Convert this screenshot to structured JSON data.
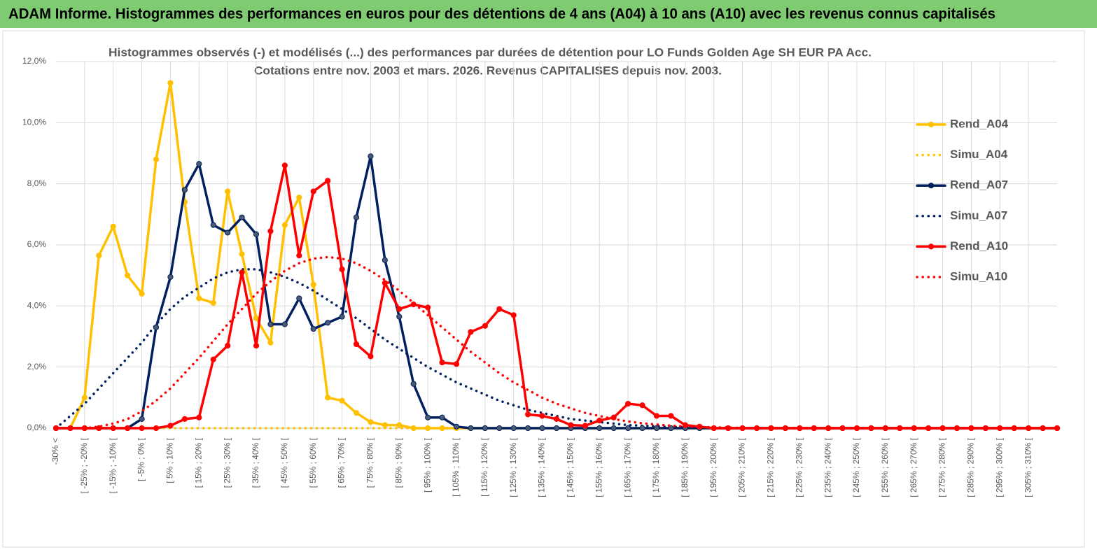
{
  "header": {
    "title": "ADAM Informe. Histogrammes des performances en euros pour des détentions de 4 ans (A04) à 10 ans (A10) avec les revenus connus capitalisés"
  },
  "chart_data": {
    "type": "line",
    "title": "Histogrammes observés (-) et modélisés (...) des performances par durées de détention pour LO Funds Golden Age SH EUR PA Acc.",
    "subtitle": "Cotations entre nov. 2003 et mars. 2026. Revenus CAPITALISES depuis nov. 2003.",
    "categories": [
      "-30% <",
      null,
      "[ -25% ; -20% [",
      null,
      "[ -15% ; -10% [",
      null,
      "[ -5% ; 0% [",
      null,
      "[ 5% ; 10% [",
      null,
      "[ 15% ; 20% [",
      null,
      "[ 25% ; 30% [",
      null,
      "[ 35% ; 40% [",
      null,
      "[ 45% ; 50% [",
      null,
      "[ 55% ; 60% [",
      null,
      "[ 65% ; 70% [",
      null,
      "[ 75% ; 80% [",
      null,
      "[ 85% ; 90% [",
      null,
      "[ 95% ; 100% [",
      null,
      "[ 105% ; 110% [",
      null,
      "[ 115% ; 120% [",
      null,
      "[ 125% ; 130% [",
      null,
      "[ 135% ; 140% [",
      null,
      "[ 145% ; 150% [",
      null,
      "[ 155% ; 160% [",
      null,
      "[ 165% ; 170% [",
      null,
      "[ 175% ; 180% [",
      null,
      "[ 185% ; 190% [",
      null,
      "[ 195% ; 200% [",
      null,
      "[ 205% ; 210% [",
      null,
      "[ 215% ; 220% [",
      null,
      "[ 225% ; 230% [",
      null,
      "[ 235% ; 240% [",
      null,
      "[ 245% ; 250% [",
      null,
      "[ 255% ; 260% [",
      null,
      "[ 265% ; 270% [",
      null,
      "[ 275% ; 280% [",
      null,
      "[ 285% ; 290% [",
      null,
      "[ 295% ; 300% [",
      null,
      "[ 305% ; 310% [",
      null,
      null
    ],
    "ylim": [
      0,
      12
    ],
    "yticks": [
      {
        "value": 0,
        "label": "0,0%"
      },
      {
        "value": 2,
        "label": "2,0%"
      },
      {
        "value": 4,
        "label": "4,0%"
      },
      {
        "value": 6,
        "label": "6,0%"
      },
      {
        "value": 8,
        "label": "8,0%"
      },
      {
        "value": 10,
        "label": "10,0%"
      },
      {
        "value": 12,
        "label": "12,0%"
      }
    ],
    "grid": true,
    "legend": "right",
    "series": [
      {
        "name": "Simu_A04",
        "color": "#ffc000",
        "style": "dotted",
        "markers": false,
        "values": [
          0,
          0,
          0,
          0,
          0,
          0,
          0,
          0,
          0,
          0,
          0,
          0,
          0,
          0,
          0,
          0,
          0,
          0,
          0,
          0,
          0,
          0,
          0,
          0,
          0,
          0,
          0,
          0,
          0,
          0,
          0,
          0,
          0,
          0,
          0,
          0,
          0,
          0,
          0,
          0,
          0,
          0,
          0,
          0,
          0,
          0,
          0,
          0,
          0,
          0,
          0,
          0,
          0,
          0,
          0,
          0,
          0,
          0,
          0,
          0,
          0,
          0,
          0,
          0,
          0,
          0,
          0,
          0,
          0,
          0,
          0
        ]
      },
      {
        "name": "Rend_A04",
        "color": "#ffc000",
        "style": "solid",
        "markers": true,
        "values": [
          0,
          0,
          1.0,
          5.65,
          6.6,
          5.0,
          4.4,
          8.8,
          11.3,
          7.4,
          4.25,
          4.1,
          7.75,
          5.7,
          3.6,
          2.8,
          6.65,
          7.55,
          4.7,
          1.0,
          0.9,
          0.5,
          0.2,
          0.1,
          0.1,
          0,
          0,
          0,
          0,
          0,
          0,
          0,
          0,
          0,
          0,
          0,
          0,
          0,
          0,
          0,
          0,
          0,
          0,
          0,
          0,
          0,
          0,
          0,
          0,
          0,
          0,
          0,
          0,
          0,
          0,
          0,
          0,
          0,
          0,
          0,
          0,
          0,
          0,
          0,
          0,
          0,
          0,
          0,
          0,
          0,
          0
        ]
      },
      {
        "name": "Simu_A07",
        "color": "#002060",
        "style": "dotted",
        "markers": false,
        "values": [
          0.0,
          0.4,
          0.8,
          1.3,
          1.8,
          2.3,
          2.8,
          3.4,
          3.9,
          4.3,
          4.6,
          4.9,
          5.1,
          5.2,
          5.2,
          5.1,
          4.95,
          4.75,
          4.5,
          4.2,
          3.9,
          3.6,
          3.25,
          2.9,
          2.6,
          2.3,
          2.0,
          1.75,
          1.5,
          1.3,
          1.1,
          0.9,
          0.75,
          0.6,
          0.5,
          0.4,
          0.3,
          0.25,
          0.2,
          0.15,
          0.1,
          0.08,
          0.06,
          0.04,
          0.03,
          0.02,
          0,
          0,
          0,
          0,
          0,
          0,
          0,
          0,
          0,
          0,
          0,
          0,
          0,
          0,
          0,
          0,
          0,
          0,
          0,
          0,
          0,
          0,
          0,
          0,
          0
        ]
      },
      {
        "name": "Rend_A07",
        "color": "#002060",
        "style": "solid",
        "markers": true,
        "values": [
          0,
          0,
          0,
          0,
          0,
          0,
          0.3,
          3.3,
          4.95,
          7.8,
          8.65,
          6.65,
          6.4,
          6.9,
          6.35,
          3.4,
          3.4,
          4.25,
          3.25,
          3.45,
          3.65,
          6.9,
          8.9,
          5.5,
          3.65,
          1.45,
          0.35,
          0.35,
          0.05,
          0,
          0,
          0,
          0,
          0,
          0,
          0,
          0,
          0,
          0,
          0,
          0,
          0,
          0,
          0,
          0,
          0,
          0,
          0,
          0,
          0,
          0,
          0,
          0,
          0,
          0,
          0,
          0,
          0,
          0,
          0,
          0,
          0,
          0,
          0,
          0,
          0,
          0,
          0,
          0,
          0,
          0
        ]
      },
      {
        "name": "Simu_A10",
        "color": "#ff0000",
        "style": "dotted",
        "markers": false,
        "values": [
          0,
          0,
          0,
          0.05,
          0.15,
          0.3,
          0.55,
          0.9,
          1.3,
          1.8,
          2.3,
          2.85,
          3.4,
          3.9,
          4.4,
          4.8,
          5.15,
          5.4,
          5.55,
          5.6,
          5.55,
          5.4,
          5.15,
          4.85,
          4.5,
          4.1,
          3.7,
          3.3,
          2.9,
          2.5,
          2.15,
          1.8,
          1.5,
          1.25,
          1.0,
          0.8,
          0.65,
          0.5,
          0.4,
          0.3,
          0.22,
          0.16,
          0.12,
          0.08,
          0.06,
          0.04,
          0.03,
          0.02,
          0.01,
          0,
          0,
          0,
          0,
          0,
          0,
          0,
          0,
          0,
          0,
          0,
          0,
          0,
          0,
          0,
          0,
          0,
          0,
          0,
          0,
          0,
          0
        ]
      },
      {
        "name": "Rend_A10",
        "color": "#ff0000",
        "style": "solid",
        "markers": true,
        "values": [
          0,
          0,
          0,
          0,
          0,
          0,
          0,
          0,
          0.08,
          0.3,
          0.35,
          2.25,
          2.7,
          5.1,
          2.7,
          6.45,
          8.6,
          5.65,
          7.75,
          8.1,
          5.2,
          2.75,
          2.35,
          4.75,
          3.9,
          4.05,
          3.95,
          2.15,
          2.1,
          3.15,
          3.35,
          3.9,
          3.7,
          0.45,
          0.4,
          0.3,
          0.1,
          0.08,
          0.25,
          0.35,
          0.8,
          0.75,
          0.4,
          0.4,
          0.1,
          0.05,
          0,
          0,
          0,
          0,
          0,
          0,
          0,
          0,
          0,
          0,
          0,
          0,
          0,
          0,
          0,
          0,
          0,
          0,
          0,
          0,
          0,
          0,
          0,
          0,
          0
        ]
      }
    ],
    "legend_order": [
      1,
      0,
      3,
      2,
      5,
      4
    ]
  }
}
